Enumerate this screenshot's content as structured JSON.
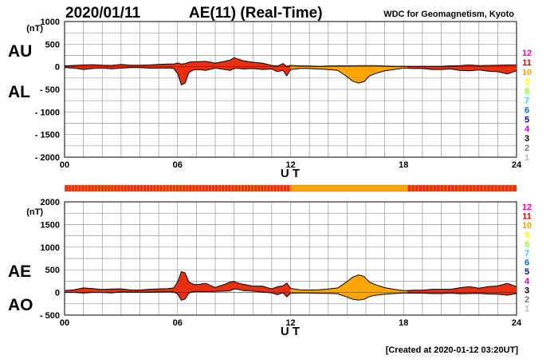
{
  "header": {
    "date": "2020/01/11",
    "title": "AE(11) (Real-Time)",
    "source": "WDC for Geomagnetism, Kyoto"
  },
  "footer": {
    "created": "[Created at 2020-01-12 03:20UT]"
  },
  "unit_label": "(nT)",
  "xlabel": "U T",
  "legend": {
    "labels": [
      "12",
      "11",
      "10",
      "9",
      "8",
      "7",
      "6",
      "5",
      "4",
      "3",
      "2",
      "1"
    ],
    "colors": [
      "#ff00aa",
      "#ee0000",
      "#ffa500",
      "#ffff00",
      "#99ff33",
      "#33ccff",
      "#0066ff",
      "#0000cc",
      "#cc00cc",
      "#000000",
      "#777777",
      "#bbbbbb"
    ]
  },
  "colors": {
    "station_red": "#e83010",
    "station_orange": "#ffa500",
    "station_mix": "#f07020",
    "grid": "#999999"
  },
  "chart_data": [
    {
      "type": "area",
      "title": "AU / AL",
      "series_labels": [
        "AU",
        "AL"
      ],
      "ylabel": "(nT)",
      "ylim": [
        -2000,
        1000
      ],
      "yticks": [
        1000,
        500,
        0,
        -500,
        -1000,
        -1500,
        -2000
      ],
      "ytick_labels": [
        "1000",
        "500",
        "0",
        "- 500",
        "- 1000",
        "- 1500",
        "- 2000"
      ],
      "xlim": [
        0,
        24
      ],
      "xticks": [
        0,
        6,
        12,
        18,
        24
      ],
      "xtick_labels": [
        "00",
        "06",
        "12",
        "18",
        "24"
      ],
      "x": [
        0,
        0.5,
        1,
        1.5,
        2,
        2.5,
        3,
        3.5,
        4,
        4.5,
        5,
        5.5,
        5.8,
        6,
        6.2,
        6.4,
        6.6,
        6.8,
        7,
        7.5,
        8,
        8.5,
        8.8,
        9,
        9.2,
        9.5,
        10,
        10.5,
        11,
        11.3,
        11.6,
        11.8,
        12,
        12.5,
        13,
        13.5,
        14,
        14.5,
        15,
        15.3,
        15.6,
        15.9,
        16.2,
        16.5,
        17,
        17.5,
        18,
        18.5,
        19,
        19.5,
        20,
        20.5,
        21,
        21.5,
        22,
        22.5,
        23,
        23.5,
        24
      ],
      "AU": [
        20,
        30,
        40,
        45,
        35,
        30,
        50,
        35,
        35,
        40,
        50,
        60,
        60,
        85,
        60,
        70,
        100,
        110,
        110,
        120,
        80,
        120,
        150,
        200,
        175,
        130,
        100,
        80,
        30,
        15,
        70,
        10,
        30,
        20,
        15,
        10,
        15,
        20,
        20,
        20,
        25,
        25,
        25,
        25,
        15,
        10,
        10,
        10,
        10,
        10,
        10,
        20,
        25,
        40,
        25,
        30,
        35,
        40,
        40
      ],
      "AL": [
        -20,
        -30,
        -60,
        -40,
        -30,
        -45,
        -30,
        -20,
        -20,
        -30,
        -30,
        -25,
        -40,
        -150,
        -400,
        -360,
        -130,
        -80,
        -60,
        -80,
        -30,
        -60,
        -80,
        -40,
        -35,
        -50,
        -40,
        -60,
        -50,
        -110,
        -80,
        -200,
        -60,
        -40,
        -40,
        -50,
        -60,
        -80,
        -220,
        -320,
        -360,
        -330,
        -200,
        -150,
        -90,
        -60,
        -30,
        -40,
        -40,
        -60,
        -60,
        -50,
        -80,
        -90,
        -70,
        -100,
        -110,
        -160,
        -90
      ]
    },
    {
      "type": "area",
      "title": "AE / AO",
      "series_labels": [
        "AE",
        "AO"
      ],
      "ylabel": "(nT)",
      "ylim": [
        -500,
        2000
      ],
      "yticks": [
        2000,
        1500,
        1000,
        500,
        0,
        -500
      ],
      "ytick_labels": [
        "2000",
        "1500",
        "1000",
        "500",
        "0",
        "- 500"
      ],
      "xlim": [
        0,
        24
      ],
      "xticks": [
        0,
        6,
        12,
        18,
        24
      ],
      "xtick_labels": [
        "00",
        "06",
        "12",
        "18",
        "24"
      ],
      "x": [
        0,
        0.5,
        1,
        1.5,
        2,
        2.5,
        3,
        3.5,
        4,
        4.5,
        5,
        5.5,
        5.8,
        6,
        6.2,
        6.4,
        6.6,
        6.8,
        7,
        7.5,
        8,
        8.5,
        8.8,
        9,
        9.2,
        9.5,
        10,
        10.5,
        11,
        11.3,
        11.6,
        11.8,
        12,
        12.5,
        13,
        13.5,
        14,
        14.5,
        15,
        15.3,
        15.6,
        15.9,
        16.2,
        16.5,
        17,
        17.5,
        18,
        18.5,
        19,
        19.5,
        20,
        20.5,
        21,
        21.5,
        22,
        22.5,
        23,
        23.5,
        24
      ],
      "AE": [
        40,
        60,
        100,
        85,
        65,
        75,
        80,
        55,
        55,
        70,
        80,
        85,
        100,
        235,
        460,
        430,
        230,
        190,
        170,
        200,
        110,
        180,
        230,
        240,
        210,
        180,
        140,
        140,
        80,
        125,
        150,
        210,
        90,
        60,
        55,
        60,
        75,
        100,
        240,
        340,
        385,
        355,
        225,
        175,
        105,
        70,
        40,
        50,
        50,
        70,
        70,
        70,
        105,
        130,
        95,
        130,
        145,
        200,
        130
      ],
      "AO": [
        0,
        0,
        -10,
        0,
        0,
        -8,
        10,
        8,
        8,
        5,
        10,
        18,
        10,
        -32,
        -170,
        -145,
        -15,
        15,
        25,
        20,
        25,
        30,
        35,
        80,
        70,
        40,
        30,
        10,
        -10,
        -48,
        -5,
        -95,
        -15,
        -10,
        -12,
        -20,
        -22,
        -30,
        -100,
        -150,
        -168,
        -152,
        -88,
        -62,
        -38,
        -25,
        -10,
        -15,
        -15,
        -25,
        -25,
        -15,
        -28,
        -25,
        -22,
        -35,
        -38,
        -60,
        -25
      ]
    }
  ],
  "station_strip": {
    "segments": [
      {
        "start": 0,
        "end": 12,
        "color": "#e83010"
      },
      {
        "start": 12,
        "end": 18.2,
        "color": "#ffa500"
      },
      {
        "start": 18.2,
        "end": 24,
        "color": "#e83010"
      }
    ]
  }
}
